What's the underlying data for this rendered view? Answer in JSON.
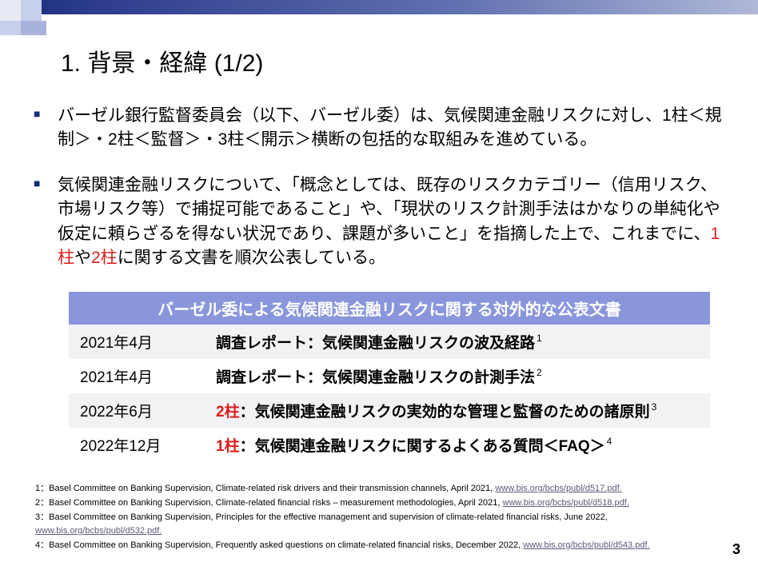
{
  "colors": {
    "accent_dark": "#1a2a7a",
    "table_header_bg": "#8a96dc",
    "table_even_bg": "#f2f2f5",
    "red": "#d81e1e",
    "link": "#5a5a7a"
  },
  "title": "1. 背景・経緯 (1/2)",
  "bullets": [
    {
      "pre": "バーゼル銀行監督委員会（以下、バーゼル委）は、気候関連金融リスクに対し、1柱＜規制＞・2柱＜監督＞・3柱＜開示＞横断の包括的な取組みを進めている。"
    },
    {
      "pre": "気候関連金融リスクについて、「概念としては、既存のリスクカテゴリー（信用リスク、市場リスク等）で捕捉可能であること」や、「現状のリスク計測手法はかなりの単純化や仮定に頼らざるを得ない状況であり、課題が多いこと」を指摘した上で、これまでに、",
      "red1": "1柱",
      "mid": "や",
      "red2": "2柱",
      "post": "に関する文書を順次公表している。"
    }
  ],
  "table": {
    "header": "バーゼル委による気候関連金融リスクに関する対外的な公表文書",
    "rows": [
      {
        "date": "2021年4月",
        "prefix": "",
        "desc": "調査レポート：気候関連金融リスクの波及経路",
        "sup": "1"
      },
      {
        "date": "2021年4月",
        "prefix": "",
        "desc": "調査レポート：気候関連金融リスクの計測手法",
        "sup": "2"
      },
      {
        "date": "2022年6月",
        "prefix": "2柱",
        "desc": "：気候関連金融リスクの実効的な管理と監督のための諸原則",
        "sup": "3"
      },
      {
        "date": "2022年12月",
        "prefix": "1柱",
        "desc": "：気候関連金融リスクに関するよくある質問＜FAQ＞",
        "sup": "4"
      }
    ]
  },
  "footnotes": [
    {
      "n": "1",
      "text": "：Basel Committee on Banking Supervision, Climate-related risk drivers and their transmission channels, April 2021, ",
      "link": "www.bis.org/bcbs/publ/d517.pdf."
    },
    {
      "n": "2",
      "text": "：Basel Committee on Banking Supervision, Climate-related financial risks – measurement methodologies, April 2021, ",
      "link": "www.bis.org/bcbs/publ/d518.pdf."
    },
    {
      "n": "3",
      "text": "：Basel Committee on Banking Supervision, Principles for the effective management and supervision of climate-related financial risks, June 2022, ",
      "link": "www.bis.org/bcbs/publ/d532.pdf."
    },
    {
      "n": "4",
      "text": "：Basel Committee on Banking Supervision, Frequently asked questions on climate-related financial risks, December 2022, ",
      "link": "www.bis.org/bcbs/publ/d543.pdf."
    }
  ],
  "page_number": "3"
}
